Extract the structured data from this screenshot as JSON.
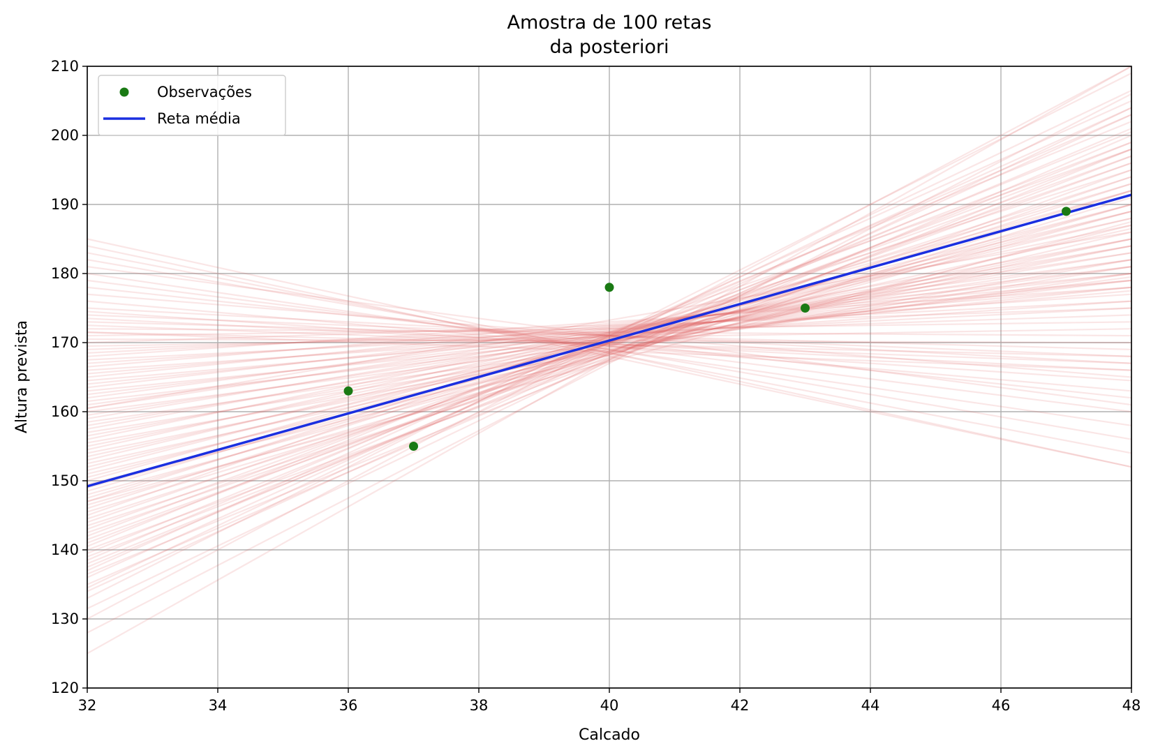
{
  "chart_data": {
    "type": "line",
    "title": [
      "Amostra de 100 retas",
      "da posteriori"
    ],
    "xlabel": "Calcado",
    "ylabel": "Altura prevista",
    "xlim": [
      32,
      48
    ],
    "ylim": [
      120,
      210
    ],
    "xticks": [
      32,
      34,
      36,
      38,
      40,
      42,
      44,
      46,
      48
    ],
    "yticks": [
      120,
      130,
      140,
      150,
      160,
      170,
      180,
      190,
      200,
      210
    ],
    "grid": true,
    "legend_position": "top-left",
    "observations": {
      "name": "Observações",
      "color": "#1a7a14",
      "points": [
        {
          "x": 36,
          "y": 163
        },
        {
          "x": 37,
          "y": 155
        },
        {
          "x": 40,
          "y": 178
        },
        {
          "x": 43,
          "y": 175
        },
        {
          "x": 47,
          "y": 189
        }
      ]
    },
    "mean_line": {
      "name": "Reta média",
      "color": "#1a2fe0",
      "x": [
        32,
        48
      ],
      "y": [
        149.2,
        191.4
      ]
    },
    "posterior_samples": {
      "count": 100,
      "color": "#e06666",
      "lines": [
        [
          125.0,
          210.0
        ],
        [
          128.0,
          206.0
        ],
        [
          130.0,
          210.0
        ],
        [
          131.5,
          204.0
        ],
        [
          133.0,
          209.0
        ],
        [
          134.0,
          203.0
        ],
        [
          134.5,
          206.5
        ],
        [
          135.0,
          200.0
        ],
        [
          136.0,
          204.0
        ],
        [
          136.5,
          198.0
        ],
        [
          137.0,
          205.0
        ],
        [
          137.5,
          201.0
        ],
        [
          138.0,
          199.0
        ],
        [
          138.5,
          203.0
        ],
        [
          139.0,
          197.0
        ],
        [
          139.5,
          200.5
        ],
        [
          140.0,
          195.0
        ],
        [
          140.5,
          202.0
        ],
        [
          141.0,
          198.0
        ],
        [
          141.5,
          196.0
        ],
        [
          142.0,
          199.0
        ],
        [
          142.5,
          194.0
        ],
        [
          143.0,
          197.0
        ],
        [
          143.5,
          192.0
        ],
        [
          144.0,
          196.0
        ],
        [
          144.5,
          193.0
        ],
        [
          145.0,
          198.0
        ],
        [
          145.5,
          191.0
        ],
        [
          146.0,
          194.0
        ],
        [
          146.5,
          190.0
        ],
        [
          147.0,
          195.0
        ],
        [
          147.5,
          192.0
        ],
        [
          148.0,
          189.0
        ],
        [
          148.5,
          193.0
        ],
        [
          149.0,
          190.0
        ],
        [
          149.5,
          187.0
        ],
        [
          150.0,
          192.0
        ],
        [
          150.5,
          189.0
        ],
        [
          151.0,
          186.0
        ],
        [
          151.5,
          190.0
        ],
        [
          152.0,
          188.0
        ],
        [
          152.5,
          185.0
        ],
        [
          153.0,
          189.0
        ],
        [
          153.5,
          186.5
        ],
        [
          154.0,
          184.0
        ],
        [
          154.5,
          188.0
        ],
        [
          155.0,
          185.0
        ],
        [
          155.5,
          182.0
        ],
        [
          156.0,
          187.0
        ],
        [
          156.5,
          184.0
        ],
        [
          157.0,
          181.0
        ],
        [
          157.5,
          185.0
        ],
        [
          158.0,
          183.0
        ],
        [
          158.5,
          180.0
        ],
        [
          159.0,
          184.0
        ],
        [
          159.5,
          182.0
        ],
        [
          160.0,
          179.5
        ],
        [
          160.5,
          183.0
        ],
        [
          161.0,
          181.0
        ],
        [
          161.5,
          179.0
        ],
        [
          162.0,
          182.0
        ],
        [
          162.5,
          180.0
        ],
        [
          163.0,
          178.0
        ],
        [
          163.5,
          181.0
        ],
        [
          164.0,
          179.0
        ],
        [
          164.5,
          177.5
        ],
        [
          165.0,
          180.0
        ],
        [
          165.5,
          178.0
        ],
        [
          166.0,
          176.0
        ],
        [
          166.5,
          179.0
        ],
        [
          167.0,
          177.0
        ],
        [
          167.5,
          175.0
        ],
        [
          168.0,
          178.0
        ],
        [
          168.5,
          176.0
        ],
        [
          169.0,
          174.0
        ],
        [
          169.5,
          172.0
        ],
        [
          170.0,
          175.0
        ],
        [
          170.5,
          170.0
        ],
        [
          171.0,
          173.0
        ],
        [
          171.5,
          168.0
        ],
        [
          172.0,
          171.0
        ],
        [
          172.5,
          167.0
        ],
        [
          173.0,
          169.0
        ],
        [
          173.5,
          166.0
        ],
        [
          174.0,
          168.0
        ],
        [
          174.5,
          164.5
        ],
        [
          175.0,
          167.0
        ],
        [
          176.0,
          163.0
        ],
        [
          177.0,
          165.0
        ],
        [
          178.0,
          162.0
        ],
        [
          179.0,
          160.0
        ],
        [
          180.0,
          158.0
        ],
        [
          181.0,
          161.0
        ],
        [
          182.0,
          156.0
        ],
        [
          183.0,
          154.0
        ],
        [
          184.0,
          152.0
        ],
        [
          185.0,
          152.0
        ],
        [
          171.5,
          166.0
        ],
        [
          160.5,
          186.0
        ],
        [
          147.0,
          187.5
        ]
      ]
    }
  }
}
